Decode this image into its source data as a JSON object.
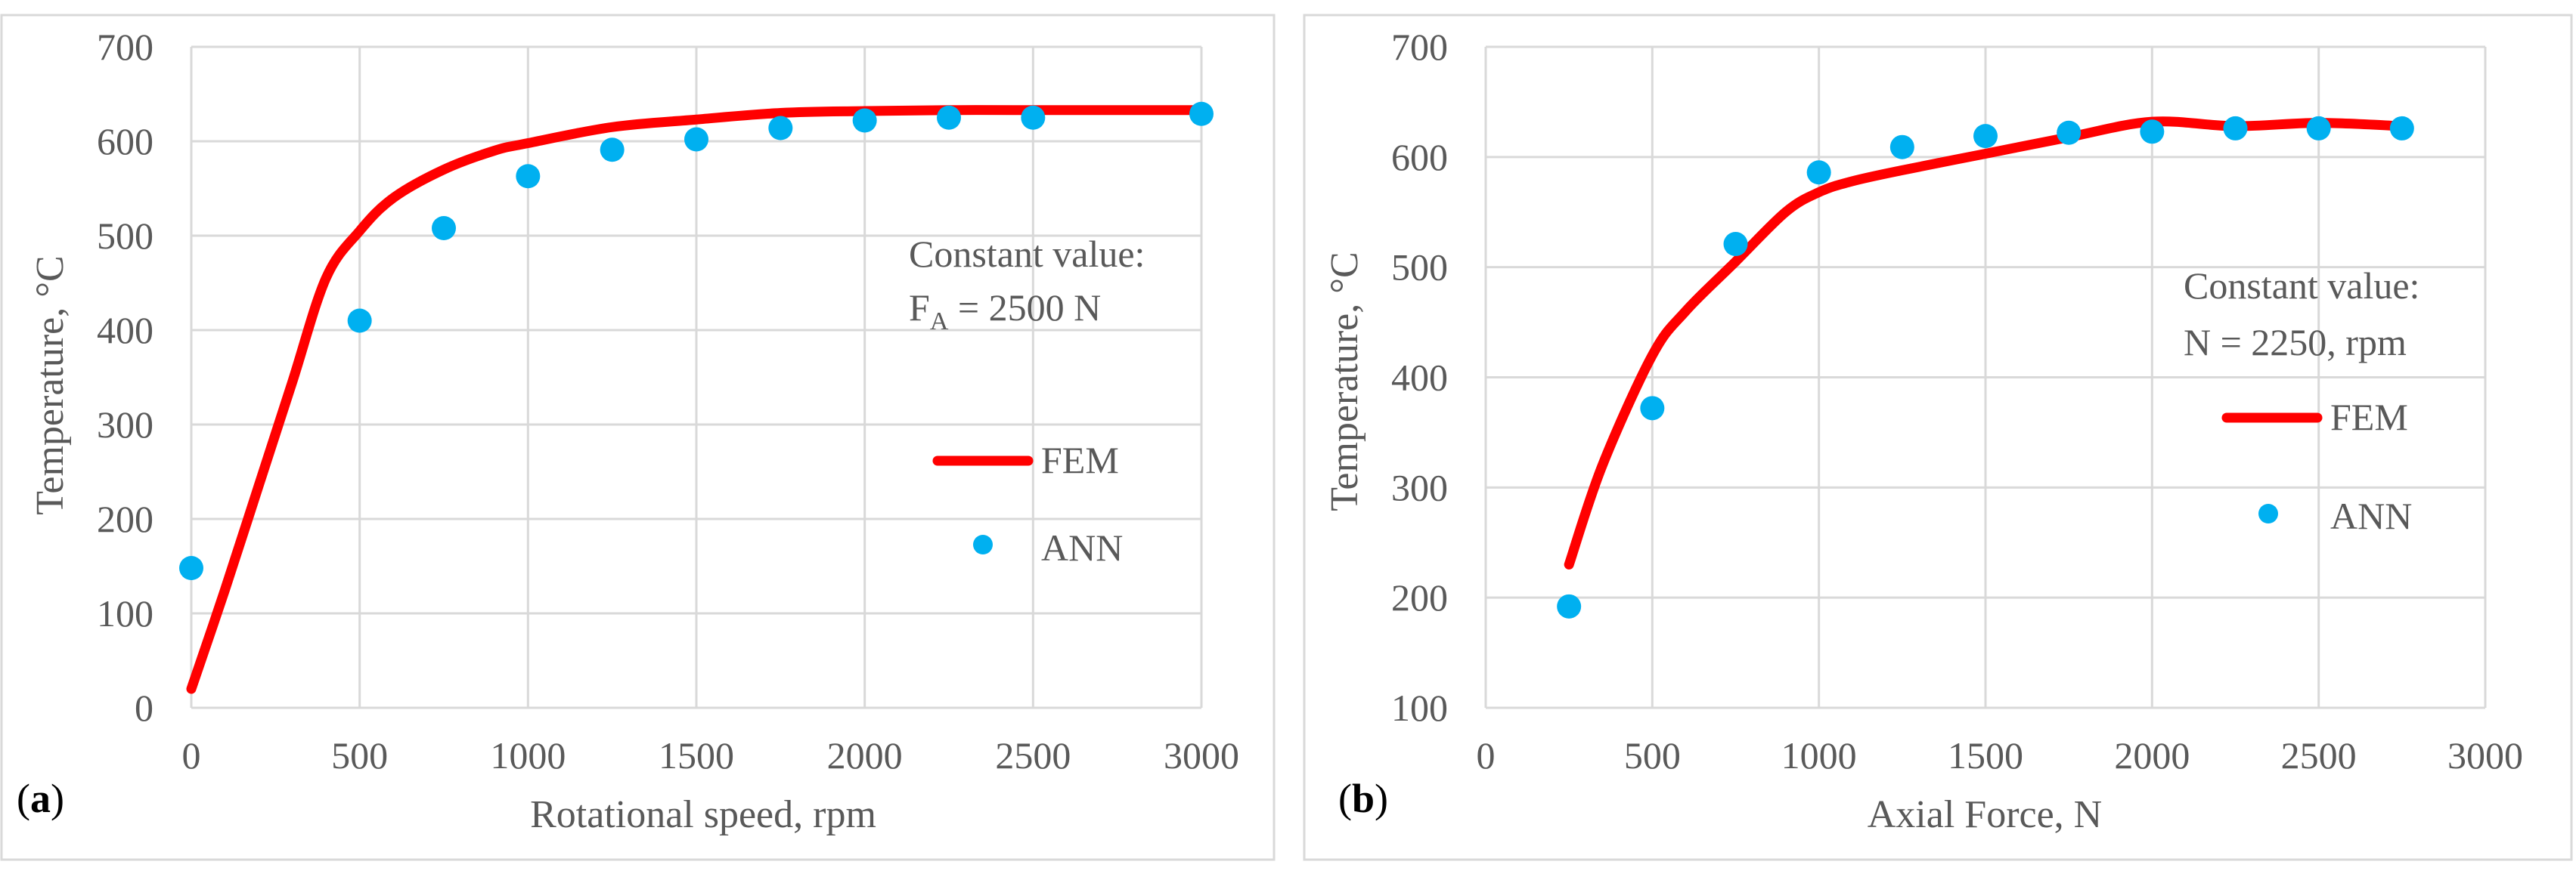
{
  "chart_data": [
    {
      "type": "line+scatter",
      "panel_label": "(a)",
      "panel_letter": "a",
      "xlabel": "Rotational speed, rpm",
      "ylabel": "Temperature, °C",
      "xlim": [
        0,
        3000
      ],
      "ylim": [
        0,
        700
      ],
      "xticks": [
        0,
        500,
        1000,
        1500,
        2000,
        2500,
        3000
      ],
      "yticks": [
        0,
        100,
        200,
        300,
        400,
        500,
        600,
        700
      ],
      "gridlines": "both",
      "annotation": {
        "line1": "Constant value:",
        "line2_main": "F",
        "line2_sub": "A",
        "line2_rest": " = 2500 N"
      },
      "legend": {
        "fem": "FEM",
        "ann": "ANN",
        "position": "right"
      },
      "series": [
        {
          "name": "FEM",
          "kind": "line",
          "color": "#ff0000",
          "x": [
            0,
            100,
            200,
            300,
            400,
            500,
            600,
            750,
            900,
            1000,
            1250,
            1500,
            1750,
            2000,
            2250,
            2500,
            2750,
            3000
          ],
          "y": [
            20,
            125,
            235,
            345,
            455,
            505,
            540,
            570,
            590,
            598,
            615,
            623,
            630,
            632,
            633,
            633,
            633,
            633
          ]
        },
        {
          "name": "ANN",
          "kind": "scatter",
          "color": "#00b0f0",
          "x": [
            0,
            500,
            750,
            1000,
            1250,
            1500,
            1750,
            2000,
            2250,
            2500,
            3000
          ],
          "y": [
            148,
            410,
            508,
            563,
            591,
            602,
            614,
            622,
            625,
            625,
            629
          ]
        }
      ]
    },
    {
      "type": "line+scatter",
      "panel_label": "(b)",
      "panel_letter": "b",
      "xlabel": "Axial Force, N",
      "ylabel": "Temperature, °C",
      "xlim": [
        0,
        3000
      ],
      "ylim": [
        100,
        700
      ],
      "xticks": [
        0,
        500,
        1000,
        1500,
        2000,
        2500,
        3000
      ],
      "yticks": [
        100,
        200,
        300,
        400,
        500,
        600,
        700
      ],
      "gridlines": "both",
      "annotation": {
        "line1": "Constant value:",
        "line2": "N = 2250, rpm"
      },
      "legend": {
        "fem": "FEM",
        "ann": "ANN",
        "position": "right"
      },
      "series": [
        {
          "name": "FEM",
          "kind": "line",
          "color": "#ff0000",
          "x": [
            250,
            350,
            500,
            600,
            750,
            900,
            1000,
            1100,
            1250,
            1500,
            1750,
            2000,
            2250,
            2500,
            2750
          ],
          "y": [
            230,
            320,
            420,
            460,
            505,
            550,
            568,
            578,
            588,
            603,
            618,
            632,
            628,
            631,
            628
          ]
        },
        {
          "name": "ANN",
          "kind": "scatter",
          "color": "#00b0f0",
          "x": [
            250,
            500,
            750,
            1000,
            1250,
            1500,
            1750,
            2000,
            2250,
            2500,
            2750
          ],
          "y": [
            192,
            372,
            521,
            586,
            609,
            619,
            622,
            623,
            626,
            626,
            626
          ]
        }
      ]
    }
  ]
}
